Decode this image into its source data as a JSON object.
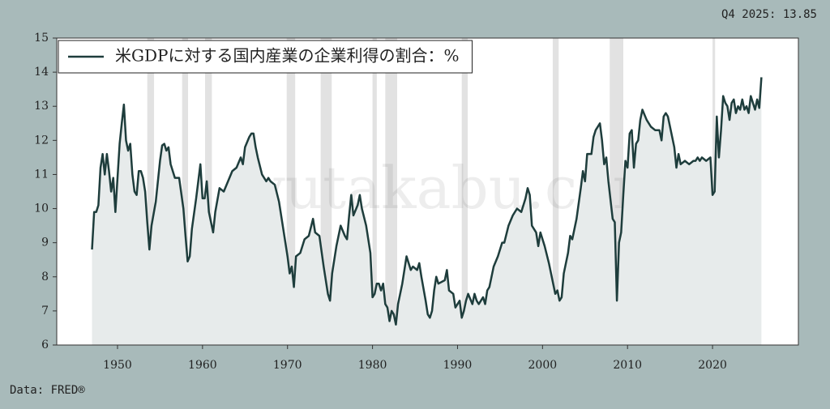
{
  "chart_data": {
    "type": "line",
    "annotation": "Q4 2025: 13.85",
    "source": "Data: FRED®",
    "watermark": "yutakabu.com",
    "xlim": [
      1942.85,
      2030.1
    ],
    "ylim": [
      6,
      15
    ],
    "xticks": [
      1950,
      1960,
      1970,
      1980,
      1990,
      2000,
      2010,
      2020
    ],
    "yticks": [
      6,
      7,
      8,
      9,
      10,
      11,
      12,
      13,
      14,
      15
    ],
    "legend": "upper left",
    "shaded_periods": [
      [
        1953.5,
        1954.3
      ],
      [
        1957.6,
        1958.3
      ],
      [
        1960.3,
        1961.1
      ],
      [
        1969.9,
        1970.9
      ],
      [
        1973.9,
        1975.2
      ],
      [
        1980.0,
        1980.5
      ],
      [
        1981.5,
        1982.9
      ],
      [
        1990.5,
        1991.2
      ],
      [
        2001.2,
        2001.9
      ],
      [
        2007.9,
        2009.5
      ],
      [
        2020.0,
        2020.3
      ]
    ],
    "x": [
      1947.0,
      1947.25,
      1947.5,
      1947.75,
      1948.0,
      1948.25,
      1948.5,
      1948.75,
      1949.0,
      1949.25,
      1949.5,
      1949.75,
      1950.0,
      1950.25,
      1950.5,
      1950.75,
      1951.0,
      1951.25,
      1951.5,
      1951.75,
      1952.0,
      1952.25,
      1952.5,
      1952.75,
      1953.0,
      1953.25,
      1953.5,
      1953.75,
      1954.0,
      1954.5,
      1955.0,
      1955.25,
      1955.5,
      1955.75,
      1956.0,
      1956.25,
      1956.5,
      1956.75,
      1957.25,
      1957.75,
      1958.0,
      1958.25,
      1958.5,
      1958.75,
      1959.25,
      1959.75,
      1960.0,
      1960.25,
      1960.5,
      1960.75,
      1961.0,
      1961.25,
      1961.5,
      1962.0,
      1962.5,
      1963.0,
      1963.5,
      1964.0,
      1964.5,
      1964.75,
      1965.0,
      1965.5,
      1965.75,
      1966.0,
      1966.25,
      1966.5,
      1967.0,
      1967.5,
      1967.75,
      1968.0,
      1968.5,
      1969.0,
      1969.5,
      1970.0,
      1970.25,
      1970.5,
      1970.75,
      1971.0,
      1971.5,
      1972.0,
      1972.5,
      1973.0,
      1973.25,
      1973.75,
      1974.25,
      1974.75,
      1975.0,
      1975.25,
      1975.75,
      1976.25,
      1976.75,
      1977.0,
      1977.25,
      1977.5,
      1977.75,
      1978.25,
      1978.5,
      1978.75,
      1979.25,
      1979.75,
      1980.0,
      1980.25,
      1980.5,
      1980.75,
      1981.0,
      1981.25,
      1981.5,
      1981.75,
      1982.0,
      1982.25,
      1982.5,
      1982.75,
      1983.0,
      1983.5,
      1984.0,
      1984.25,
      1984.5,
      1984.75,
      1985.25,
      1985.5,
      1985.75,
      1986.25,
      1986.5,
      1986.75,
      1987.0,
      1987.25,
      1987.5,
      1987.75,
      1988.5,
      1988.75,
      1989.0,
      1989.5,
      1989.75,
      1990.25,
      1990.5,
      1990.75,
      1991.0,
      1991.25,
      1991.75,
      1992.0,
      1992.25,
      1992.5,
      1993.0,
      1993.25,
      1993.5,
      1993.75,
      1994.25,
      1994.75,
      1995.25,
      1995.5,
      1996.0,
      1996.5,
      1996.75,
      1997.0,
      1997.5,
      1998.0,
      1998.25,
      1998.5,
      1998.75,
      1999.25,
      1999.5,
      1999.75,
      2000.25,
      2000.75,
      2001.25,
      2001.5,
      2001.75,
      2002.0,
      2002.25,
      2002.5,
      2003.0,
      2003.25,
      2003.5,
      2004.0,
      2004.5,
      2004.75,
      2005.0,
      2005.25,
      2005.75,
      2006.0,
      2006.25,
      2006.5,
      2006.75,
      2007.0,
      2007.25,
      2007.5,
      2007.75,
      2008.25,
      2008.5,
      2008.75,
      2009.0,
      2009.25,
      2009.5,
      2009.75,
      2010.0,
      2010.25,
      2010.5,
      2010.75,
      2011.0,
      2011.25,
      2011.5,
      2011.75,
      2012.25,
      2012.75,
      2013.25,
      2013.75,
      2014.0,
      2014.25,
      2014.5,
      2014.75,
      2015.25,
      2015.5,
      2015.75,
      2016.0,
      2016.25,
      2016.75,
      2017.25,
      2017.75,
      2018.0,
      2018.25,
      2018.5,
      2018.75,
      2019.25,
      2019.75,
      2020.0,
      2020.25,
      2020.5,
      2020.75,
      2021.0,
      2021.25,
      2021.5,
      2021.75,
      2022.0,
      2022.25,
      2022.5,
      2022.75,
      2023.0,
      2023.25,
      2023.5,
      2023.75,
      2024.0,
      2024.25,
      2024.5,
      2024.75,
      2025.0,
      2025.25,
      2025.5,
      2025.75
    ],
    "series": [
      {
        "name": "米GDPに対する国内産業の企業利得の割合：%",
        "color": "#1e3d3c",
        "fill": "#e7ebeb",
        "values": [
          8.8,
          9.9,
          9.9,
          10.1,
          11.2,
          11.6,
          11.0,
          11.6,
          11.1,
          10.5,
          10.9,
          9.9,
          10.9,
          11.9,
          12.5,
          13.05,
          12.0,
          11.7,
          11.9,
          11.0,
          10.5,
          10.4,
          11.1,
          11.1,
          10.9,
          10.5,
          9.6,
          8.8,
          9.5,
          10.2,
          11.4,
          11.85,
          11.9,
          11.7,
          11.8,
          11.3,
          11.1,
          10.9,
          10.9,
          10.0,
          9.2,
          8.45,
          8.6,
          9.4,
          10.3,
          11.3,
          10.3,
          10.3,
          10.8,
          9.9,
          9.6,
          9.3,
          9.9,
          10.6,
          10.5,
          10.8,
          11.1,
          11.2,
          11.5,
          11.3,
          11.8,
          12.1,
          12.2,
          12.2,
          11.8,
          11.5,
          11.0,
          10.8,
          10.9,
          10.8,
          10.7,
          10.2,
          9.4,
          8.6,
          8.1,
          8.3,
          7.7,
          8.6,
          8.7,
          9.1,
          9.2,
          9.7,
          9.3,
          9.2,
          8.3,
          7.5,
          7.3,
          8.1,
          8.9,
          9.5,
          9.2,
          9.1,
          9.8,
          10.4,
          9.8,
          10.1,
          10.4,
          10.0,
          9.5,
          8.7,
          7.4,
          7.5,
          7.8,
          7.8,
          7.6,
          7.8,
          7.2,
          7.1,
          6.7,
          7.0,
          6.9,
          6.6,
          7.2,
          7.8,
          8.6,
          8.4,
          8.2,
          8.3,
          8.2,
          8.4,
          8.0,
          7.3,
          6.9,
          6.8,
          7.0,
          7.6,
          8.0,
          7.8,
          7.9,
          8.2,
          7.6,
          7.5,
          7.1,
          7.3,
          6.8,
          7.0,
          7.3,
          7.5,
          7.2,
          7.5,
          7.3,
          7.2,
          7.4,
          7.2,
          7.6,
          7.7,
          8.3,
          8.6,
          9.0,
          9.0,
          9.5,
          9.8,
          9.9,
          10.0,
          9.9,
          10.3,
          10.6,
          10.4,
          9.5,
          9.3,
          8.9,
          9.3,
          8.9,
          8.4,
          7.8,
          7.5,
          7.6,
          7.3,
          7.4,
          8.1,
          8.7,
          9.2,
          9.1,
          9.7,
          10.6,
          11.1,
          10.8,
          11.6,
          11.6,
          12.1,
          12.3,
          12.4,
          12.5,
          12.0,
          11.3,
          11.5,
          10.8,
          9.7,
          9.6,
          7.3,
          9.0,
          9.3,
          10.4,
          11.4,
          11.2,
          12.2,
          12.3,
          11.2,
          11.9,
          12.0,
          12.6,
          12.9,
          12.6,
          12.4,
          12.3,
          12.3,
          12.0,
          12.7,
          12.8,
          12.7,
          12.1,
          11.8,
          11.2,
          11.6,
          11.3,
          11.4,
          11.3,
          11.4,
          11.4,
          11.5,
          11.4,
          11.5,
          11.4,
          11.5,
          10.4,
          10.5,
          12.7,
          11.5,
          12.3,
          13.3,
          13.1,
          13.0,
          12.6,
          13.1,
          13.2,
          12.8,
          13.0,
          12.9,
          13.2,
          12.9,
          13.0,
          12.8,
          13.3,
          13.1,
          12.9,
          13.2,
          12.95,
          13.85
        ]
      }
    ]
  }
}
